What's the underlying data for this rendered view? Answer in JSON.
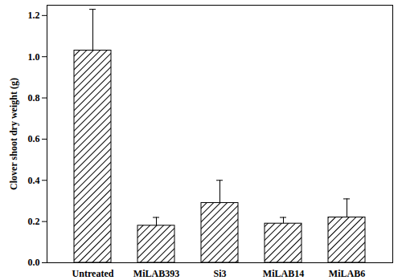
{
  "chart_data": {
    "type": "bar",
    "categories": [
      "Untreated",
      "MiLAB393",
      "Si3",
      "MiLAB14",
      "MiLAB6"
    ],
    "values": [
      1.03,
      0.18,
      0.29,
      0.19,
      0.22
    ],
    "errors": [
      0.2,
      0.04,
      0.11,
      0.03,
      0.09
    ],
    "color": "#000000",
    "ylabel": "Clover shoot dry weight (g)",
    "ylim": [
      0,
      1.25
    ],
    "yticks": [
      {
        "value": 0,
        "label": "0.0"
      },
      {
        "value": 0.2,
        "label": "0.2"
      },
      {
        "value": 0.4,
        "label": "0.4"
      },
      {
        "value": 0.6,
        "label": "0.6"
      },
      {
        "value": 0.8,
        "label": "0.8"
      },
      {
        "value": 1,
        "label": "1.0"
      },
      {
        "value": 1.2,
        "label": "1.2"
      }
    ],
    "grid": false
  }
}
